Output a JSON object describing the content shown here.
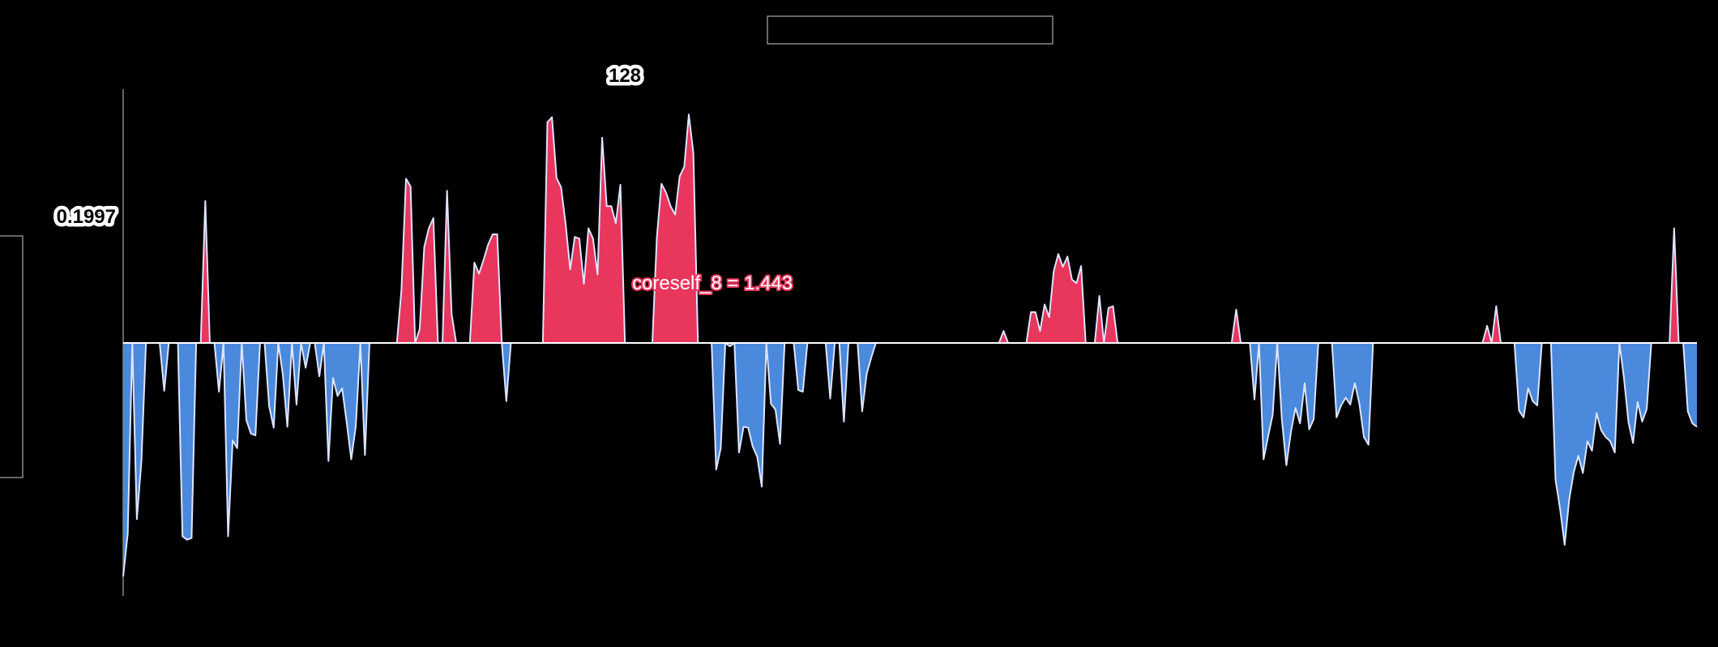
{
  "colors": {
    "background": "#000000",
    "positive_fill": "#e8365d",
    "negative_fill": "#4a89dc",
    "line": "#dde4ff",
    "axis": "#888888",
    "annotation": "#e8365d"
  },
  "labels": {
    "x_marker": "128",
    "y_marker": "0.1997",
    "annotation": "coreself_8 = 1.443"
  },
  "chart_data": {
    "type": "area",
    "title": "",
    "xlabel": "",
    "ylabel": "",
    "x_start": 0,
    "x_step": 1,
    "xlim": [
      0,
      351
    ],
    "ylim": [
      -0.3,
      0.3
    ],
    "zero_fill": true,
    "grid": false,
    "legend": "none",
    "marker_x": 128,
    "marker_y": 0.1997,
    "annotation": {
      "text": "coreself_8 = 1.443",
      "x": 128,
      "y": 1.443
    },
    "values": [
      -0.273,
      -0.223,
      0.0,
      -0.206,
      -0.138,
      0.0,
      0.0,
      0.0,
      0.0,
      -0.056,
      0.0,
      0.0,
      0.0,
      -0.226,
      -0.23,
      -0.228,
      0.0,
      0.0,
      0.166,
      0.0,
      0.0,
      -0.057,
      0.0,
      -0.226,
      -0.114,
      -0.123,
      0.0,
      -0.09,
      -0.106,
      -0.108,
      0.0,
      0.0,
      -0.074,
      -0.099,
      0.0,
      -0.037,
      -0.098,
      0.0,
      -0.072,
      0.0,
      -0.029,
      0.0,
      0.0,
      -0.039,
      0.0,
      -0.138,
      -0.041,
      -0.062,
      -0.053,
      -0.093,
      -0.136,
      -0.097,
      0.0,
      -0.131,
      0.0,
      0.0,
      0.0,
      0.0,
      0.0,
      0.0,
      0.0,
      0.062,
      0.192,
      0.183,
      0.0,
      0.016,
      0.112,
      0.134,
      0.146,
      0.0,
      0.0,
      0.178,
      0.034,
      0.0,
      0.0,
      0.0,
      0.0,
      0.094,
      0.081,
      0.097,
      0.115,
      0.127,
      0.127,
      0.0,
      -0.068,
      0.0,
      0.0,
      0.0,
      0.0,
      0.0,
      0.0,
      0.0,
      0.0,
      0.258,
      0.264,
      0.193,
      0.182,
      0.139,
      0.086,
      0.124,
      0.122,
      0.069,
      0.134,
      0.122,
      0.08,
      0.24,
      0.16,
      0.16,
      0.14,
      0.185,
      0.0,
      0.0,
      0.0,
      0.0,
      0.0,
      0.0,
      0.0,
      0.124,
      0.186,
      0.176,
      0.16,
      0.15,
      0.195,
      0.206,
      0.267,
      0.222,
      0.0,
      0.0,
      0.0,
      0.0,
      -0.148,
      -0.123,
      0.0,
      -0.004,
      0.0,
      -0.128,
      -0.098,
      -0.099,
      -0.121,
      -0.133,
      -0.168,
      0.0,
      -0.071,
      -0.078,
      -0.118,
      0.0,
      0.0,
      0.0,
      -0.055,
      -0.057,
      0.0,
      0.0,
      0.0,
      0.0,
      0.0,
      -0.065,
      0.0,
      0.0,
      -0.092,
      0.0,
      0.0,
      0.0,
      -0.08,
      -0.036,
      -0.017,
      0.0,
      0.0,
      0.0,
      0.0,
      0.0,
      0.0,
      0.0,
      0.0,
      0.0,
      0.0,
      0.0,
      0.0,
      0.0,
      0.0,
      0.0,
      0.0,
      0.0,
      0.0,
      0.0,
      0.0,
      0.0,
      0.0,
      0.0,
      0.0,
      0.0,
      0.0,
      0.0,
      0.0,
      0.014,
      0.0,
      0.0,
      0.0,
      0.0,
      0.0,
      0.036,
      0.036,
      0.014,
      0.045,
      0.03,
      0.084,
      0.104,
      0.089,
      0.101,
      0.074,
      0.07,
      0.09,
      0.0,
      0.0,
      0.0,
      0.055,
      0.0,
      0.041,
      0.043,
      0.0,
      0.0,
      0.0,
      0.0,
      0.0,
      0.0,
      0.0,
      0.0,
      0.0,
      0.0,
      0.0,
      0.0,
      0.0,
      0.0,
      0.0,
      0.0,
      0.0,
      0.0,
      0.0,
      0.0,
      0.0,
      0.0,
      0.0,
      0.0,
      0.0,
      0.0,
      0.039,
      0.0,
      0.0,
      0.0,
      -0.066,
      0.0,
      -0.136,
      -0.109,
      -0.084,
      0.0,
      -0.089,
      -0.143,
      -0.104,
      -0.076,
      -0.094,
      -0.047,
      -0.101,
      -0.089,
      0.0,
      0.0,
      0.0,
      0.0,
      -0.087,
      -0.073,
      -0.064,
      -0.072,
      -0.047,
      -0.071,
      -0.11,
      -0.119,
      0.0,
      0.0,
      0.0,
      0.0,
      0.0,
      0.0,
      0.0,
      0.0,
      0.0,
      0.0,
      0.0,
      0.0,
      0.0,
      0.0,
      0.0,
      0.0,
      0.0,
      0.0,
      0.0,
      0.0,
      0.0,
      0.0,
      0.0,
      0.0,
      0.0,
      0.02,
      0.0,
      0.043,
      0.0,
      0.0,
      0.0,
      0.0,
      -0.079,
      -0.087,
      -0.053,
      -0.068,
      -0.073,
      0.0,
      0.0,
      0.0,
      -0.16,
      -0.194,
      -0.236,
      -0.183,
      -0.151,
      -0.132,
      -0.152,
      -0.115,
      -0.126,
      -0.082,
      -0.102,
      -0.11,
      -0.115,
      -0.128,
      0.0,
      -0.041,
      -0.093,
      -0.117,
      -0.069,
      -0.092,
      -0.077,
      0.0,
      0.0,
      0.0,
      0.0,
      0.0,
      0.134,
      0.0,
      0.0,
      -0.08,
      -0.094,
      -0.098
    ]
  }
}
